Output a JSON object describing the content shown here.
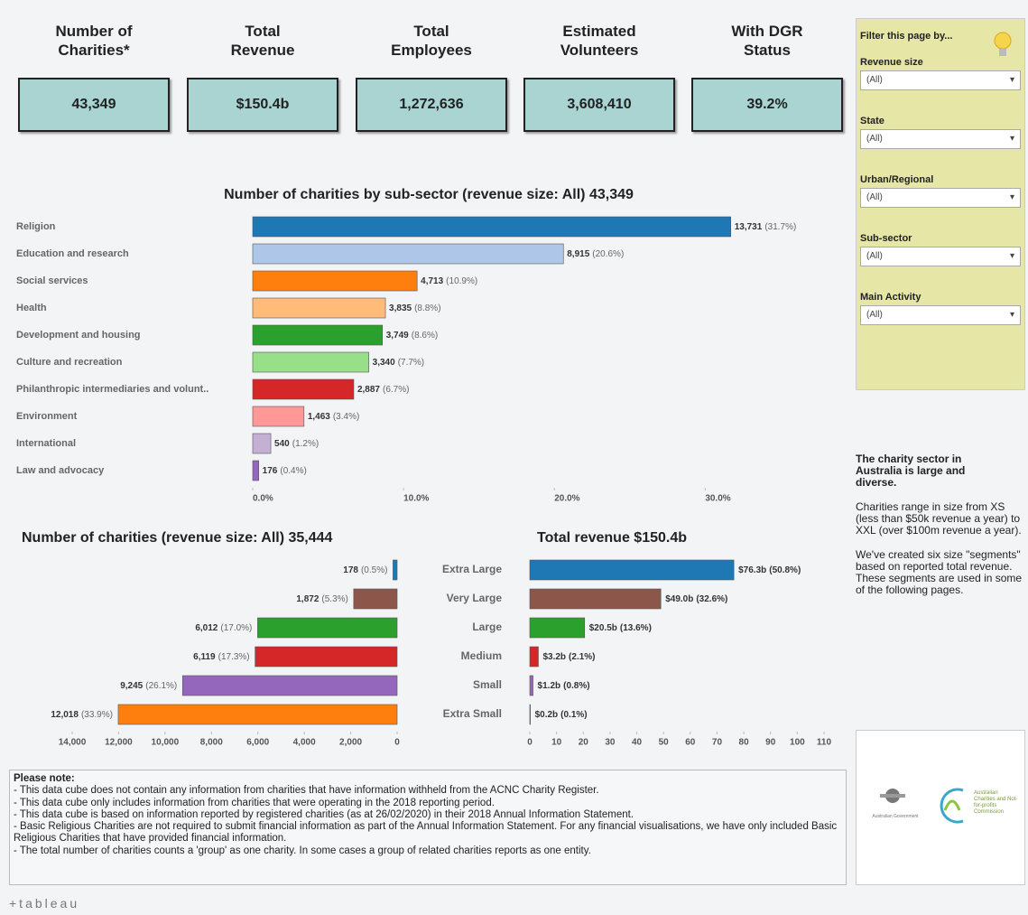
{
  "kpis": [
    {
      "label": "Number of Charities*",
      "value": "43,349"
    },
    {
      "label": "Total Revenue",
      "value": "$150.4b"
    },
    {
      "label": "Total Employees",
      "value": "1,272,636"
    },
    {
      "label": "Estimated Volunteers",
      "value": "3,608,410"
    },
    {
      "label": "With DGR Status",
      "value": "39.2%"
    }
  ],
  "filter_panel": {
    "title": "Filter this page by...",
    "filters": [
      {
        "label": "Revenue size",
        "value": "(All)"
      },
      {
        "label": "State",
        "value": "(All)"
      },
      {
        "label": "Urban/Regional",
        "value": "(All)"
      },
      {
        "label": "Sub-sector",
        "value": "(All)"
      },
      {
        "label": "Main Activity",
        "value": "(All)"
      }
    ]
  },
  "chart_data": [
    {
      "type": "bar",
      "title": "Number of charities by sub-sector (revenue size: All) 43,349",
      "categories": [
        "Religion",
        "Education and research",
        "Social services",
        "Health",
        "Development and housing",
        "Culture and recreation",
        "Philanthropic intermediaries and volunt..",
        "Environment",
        "International",
        "Law and advocacy"
      ],
      "values": [
        31.7,
        20.6,
        10.9,
        8.8,
        8.6,
        7.7,
        6.7,
        3.4,
        1.2,
        0.4
      ],
      "value_labels": [
        "(31.7%)",
        "(20.6%)",
        "(10.9%)",
        "(8.8%)",
        "(8.6%)",
        "(7.7%)",
        "(6.7%)",
        "(3.4%)",
        "(1.2%)",
        "(0.4%)"
      ],
      "count_labels": [
        "13,731",
        "8,915",
        "4,713",
        "3,835",
        "3,749",
        "3,340",
        "2,887",
        "1,463",
        "540",
        "176"
      ],
      "colors": [
        "#1f77b4",
        "#aec7e8",
        "#ff7f0e",
        "#ffbb78",
        "#2ca02c",
        "#98df8a",
        "#d62728",
        "#ff9896",
        "#c5b0d5",
        "#9467bd"
      ],
      "xlim": [
        0,
        38
      ],
      "xticks": [
        {
          "value": 0,
          "label": "0.0%"
        },
        {
          "value": 10,
          "label": "10.0%"
        },
        {
          "value": 20,
          "label": "20.0%"
        },
        {
          "value": 30,
          "label": "30.0%"
        }
      ]
    },
    {
      "type": "bar",
      "title": "Number of charities (revenue size: All) 35,444",
      "categories": [
        "Extra Large",
        "Very Large",
        "Large",
        "Medium",
        "Small",
        "Extra Small"
      ],
      "values": [
        178,
        1872,
        6012,
        6119,
        9245,
        12018
      ],
      "value_labels": [
        "178",
        "1,872",
        "6,012",
        "6,119",
        "9,245",
        "12,018"
      ],
      "percent_labels": [
        "(0.5%)",
        "(5.3%)",
        "(17.0%)",
        "(17.3%)",
        "(26.1%)",
        "(33.9%)"
      ],
      "colors": [
        "#1f77b4",
        "#8c564b",
        "#2ca02c",
        "#d62728",
        "#9467bd",
        "#ff7f0e"
      ],
      "xlim": [
        0,
        14000
      ],
      "x_reversed": true,
      "xticks": [
        {
          "value": 14000,
          "label": "14,000"
        },
        {
          "value": 12000,
          "label": "12,000"
        },
        {
          "value": 10000,
          "label": "10,000"
        },
        {
          "value": 8000,
          "label": "8,000"
        },
        {
          "value": 6000,
          "label": "6,000"
        },
        {
          "value": 4000,
          "label": "4,000"
        },
        {
          "value": 2000,
          "label": "2,000"
        },
        0
      ]
    },
    {
      "type": "bar",
      "title": "Total revenue $150.4b",
      "values": [
        76.3,
        49.0,
        20.5,
        3.2,
        1.2,
        0.2
      ],
      "value_labels": [
        "$76.3b",
        "$49.0b",
        "$20.5b",
        "$3.2b",
        "$1.2b",
        "$0.2b"
      ],
      "percent_labels": [
        "(50.8%)",
        "(32.6%)",
        "(13.6%)",
        "(2.1%)",
        "(0.8%)",
        "(0.1%)"
      ],
      "colors": [
        "#1f77b4",
        "#8c564b",
        "#2ca02c",
        "#d62728",
        "#9467bd",
        "#ff7f0e"
      ],
      "xlim": [
        0,
        110
      ],
      "xticks": [
        0,
        10,
        20,
        30,
        40,
        50,
        60,
        70,
        80,
        90,
        100,
        110
      ]
    }
  ],
  "side_text": {
    "heading": "The charity sector in Australia is large and diverse.",
    "paragraphs": [
      "Charities range in size from XS (less than $50k revenue a year) to XXL (over $100m revenue a year).",
      "We've created six size \"segments\" based on reported total revenue. These segments are used in some of the following pages."
    ]
  },
  "notes": {
    "title": "Please note:",
    "lines": [
      "- This data cube does not contain any information from charities that have information withheld from the ACNC Charity Register.",
      "- This data cube only includes information from charities that were operating in the 2018 reporting period.",
      "- This data cube is based on information reported by registered charities (as at 26/02/2020) in their 2018 Annual Information Statement.",
      "- Basic Religious Charities are not required to submit financial information as part of the Annual Information Statement. For any financial visualisations, we have only included Basic Religious Charities that have provided financial information.",
      "- The total number of charities counts a 'group' as one charity. In some cases a group of related charities reports as one entity."
    ]
  },
  "logo": {
    "government": "Australian Government",
    "text": "Australian Charities and Not-for-profits Commission"
  },
  "footer": "+tableau"
}
